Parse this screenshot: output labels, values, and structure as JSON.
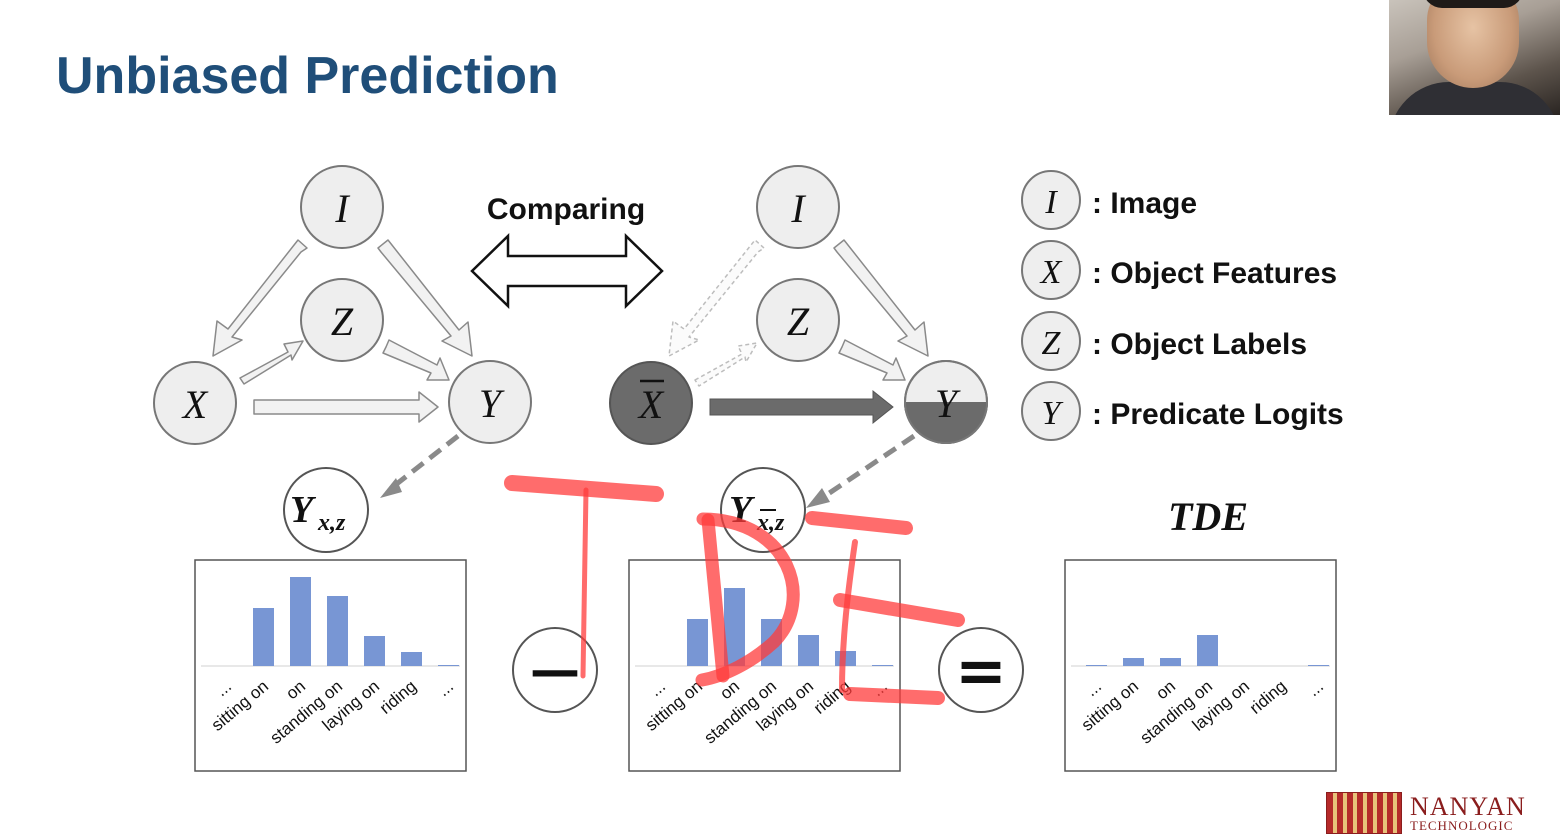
{
  "slide": {
    "title": "Unbiased Prediction"
  },
  "diagram": {
    "comparing_label": "Comparing",
    "left_graph": {
      "nodes": {
        "I": "I",
        "Z": "Z",
        "X": "X",
        "Y": "Y"
      },
      "output_base": "Y",
      "output_sub": "x,z"
    },
    "right_graph": {
      "nodes": {
        "I": "I",
        "Z": "Z",
        "X": "X",
        "Y": "Y"
      },
      "output_base": "Y",
      "output_sub": "x,z"
    },
    "minus_sign": "—",
    "equals_sign": "=",
    "tde_label": "TDE",
    "legend": [
      {
        "symbol": "I",
        "label": ": Image"
      },
      {
        "symbol": "X",
        "label": ": Object Features"
      },
      {
        "symbol": "Z",
        "label": ": Object Labels"
      },
      {
        "symbol": "Y",
        "label": ": Predicate Logits"
      }
    ],
    "colors": {
      "node_fill": "#eeeeee",
      "node_stroke": "#777777",
      "dark_node_fill": "#6b6b6b",
      "bar_color": "#7896d4",
      "annotation_red": "#ff3b3b"
    }
  },
  "chart_data": [
    {
      "type": "bar",
      "categories": [
        "...",
        "sitting on",
        "on",
        "standing on",
        "laying on",
        "riding",
        "..."
      ],
      "values": [
        0,
        0.58,
        0.89,
        0.7,
        0.3,
        0.14,
        0.01
      ]
    },
    {
      "type": "bar",
      "categories": [
        "...",
        "sitting on",
        "on",
        "standing on",
        "laying on",
        "riding",
        "..."
      ],
      "values": [
        0,
        0.47,
        0.78,
        0.47,
        0.31,
        0.15,
        0.01
      ]
    },
    {
      "type": "bar",
      "categories": [
        "...",
        "sitting on",
        "on",
        "standing on",
        "laying on",
        "riding",
        "..."
      ],
      "values": [
        0.01,
        0.08,
        0.08,
        0.31,
        0,
        0,
        0.01
      ]
    }
  ],
  "branding": {
    "logo_line1": "NANYAN",
    "logo_line2": "TECHNOLOGIC"
  }
}
